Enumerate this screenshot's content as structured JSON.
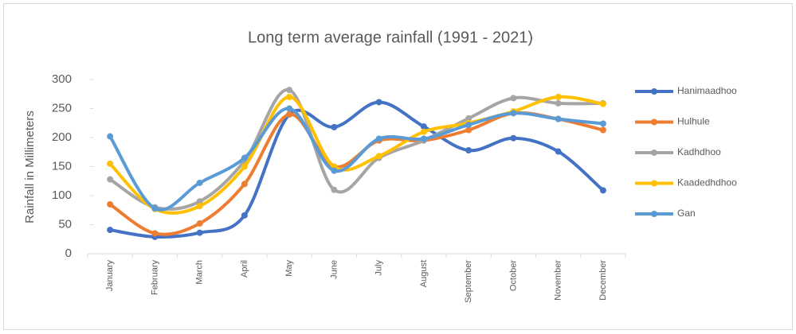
{
  "chart_data": {
    "type": "line",
    "title": "Long term average rainfall (1991 - 2021)",
    "y_label": "Rainfall in Millimeters",
    "categories": [
      "January",
      "February",
      "March",
      "April",
      "May",
      "June",
      "July",
      "August",
      "September",
      "October",
      "November",
      "December"
    ],
    "series": [
      {
        "name": "Hanimaadhoo",
        "color": "#4472c4",
        "values": [
          41,
          29,
          36,
          66,
          240,
          218,
          261,
          219,
          178,
          199,
          176,
          109
        ]
      },
      {
        "name": "Hulhule",
        "color": "#ed7d31",
        "values": [
          85,
          35,
          52,
          120,
          240,
          150,
          195,
          195,
          213,
          242,
          232,
          213
        ]
      },
      {
        "name": "Kadhdhoo",
        "color": "#a5a5a5",
        "values": [
          128,
          80,
          90,
          160,
          282,
          110,
          165,
          195,
          233,
          268,
          259,
          259
        ]
      },
      {
        "name": "Kaadedhdhoo",
        "color": "#ffc000",
        "values": [
          155,
          77,
          82,
          150,
          270,
          150,
          168,
          210,
          225,
          245,
          270,
          258
        ]
      },
      {
        "name": "Gan",
        "color": "#5b9bd5",
        "values": [
          202,
          78,
          122,
          165,
          250,
          143,
          198,
          198,
          222,
          242,
          232,
          224
        ]
      }
    ],
    "ylim": [
      0,
      300
    ],
    "yticks": [
      0,
      50,
      100,
      150,
      200,
      250,
      300
    ],
    "smooth": true,
    "legend": "right"
  }
}
